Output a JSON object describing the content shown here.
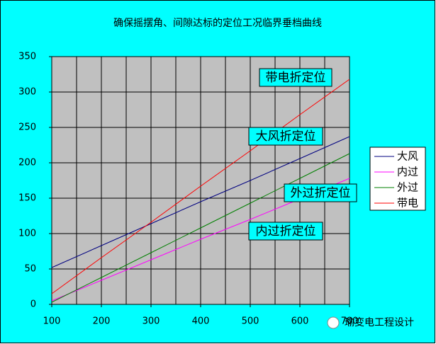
{
  "chart_data": {
    "type": "line",
    "title": "确保摇摆角、间隙达标的定位工况临界垂档曲线",
    "x": [
      100,
      200,
      300,
      400,
      500,
      600,
      700
    ],
    "series": [
      {
        "name": "大风",
        "color": "#000080",
        "values": [
          52,
          83,
          114,
          145,
          175,
          206,
          237
        ]
      },
      {
        "name": "内过",
        "color": "#ff00ff",
        "values": [
          5,
          34,
          63,
          92,
          120,
          149,
          178
        ]
      },
      {
        "name": "外过",
        "color": "#008000",
        "values": [
          3,
          38,
          73,
          108,
          143,
          178,
          213
        ]
      },
      {
        "name": "带电",
        "color": "#ff0000",
        "values": [
          15,
          66,
          116,
          167,
          217,
          268,
          318
        ]
      }
    ],
    "annotations": [
      "带电折定位",
      "大风折定位",
      "外过折定位",
      "内过折定位"
    ],
    "xlim": [
      100,
      700
    ],
    "xticks": [
      100,
      200,
      300,
      400,
      500,
      600,
      700
    ],
    "ylim": [
      0,
      350
    ],
    "yticks": [
      0,
      50,
      100,
      150,
      200,
      250,
      300,
      350
    ],
    "grid": true,
    "legend": "right",
    "watermark": "瑜变电工程设计"
  }
}
